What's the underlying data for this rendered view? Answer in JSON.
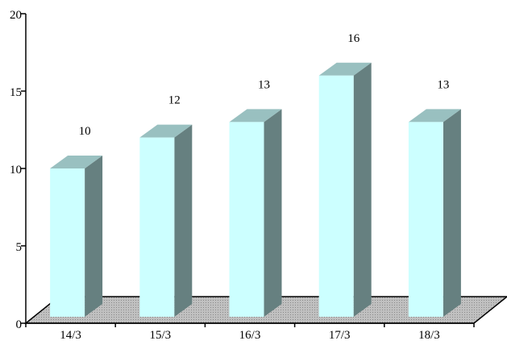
{
  "chart_data": {
    "type": "bar",
    "categories": [
      "14/3",
      "15/3",
      "16/3",
      "17/3",
      "18/3"
    ],
    "values": [
      10,
      12,
      13,
      16,
      13
    ],
    "data_labels": [
      "10",
      "12",
      "13",
      "16",
      "13"
    ],
    "y_ticks": [
      "0",
      "5",
      "10",
      "15",
      "20"
    ],
    "ylim": [
      0,
      20
    ],
    "title": "",
    "xlabel": "",
    "ylabel": "",
    "grid": false,
    "legend": "none",
    "style": "3d-column",
    "colors": {
      "bar_front": "#ccffff",
      "bar_side": "#668080",
      "bar_top": "#99c0c0",
      "floor": "#c0c0c0",
      "axis": "#000000"
    }
  }
}
